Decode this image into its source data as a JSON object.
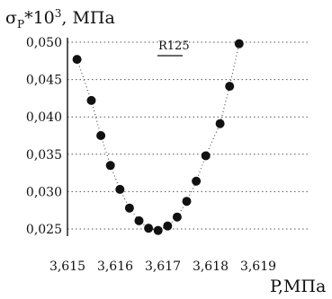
{
  "chart_data": {
    "type": "scatter",
    "ylabel_main": "σ",
    "ylabel_sub": "P",
    "ylabel_rest": "*10",
    "ylabel_sup": "3",
    "ylabel_unit": ", МПа",
    "xlabel": "P,МПа",
    "legend_label": "R125",
    "legend_position": "top-center",
    "xlim": [
      3.615,
      3.619
    ],
    "ylim": [
      0.025,
      0.05
    ],
    "x_ticks": [
      3.615,
      3.616,
      3.617,
      3.618,
      3.619
    ],
    "x_tick_labels": [
      "3,615",
      "3,616",
      "3,617",
      "3,618",
      "3,619"
    ],
    "y_ticks": [
      0.025,
      0.03,
      0.035,
      0.04,
      0.045,
      0.05
    ],
    "y_tick_labels": [
      "0,025",
      "0,030",
      "0,035",
      "0,040",
      "0,045",
      "0,050"
    ],
    "grid": "horizontal-dotted",
    "fit_curve": "dotted",
    "series": [
      {
        "x": [
          3.6152,
          3.6155,
          3.6157,
          3.6159,
          3.6161,
          3.6163,
          3.6165,
          3.6167,
          3.6169,
          3.6171,
          3.6173,
          3.6175,
          3.6177,
          3.6179,
          3.6182,
          3.6184,
          3.6186
        ],
        "y": [
          0.0477,
          0.0422,
          0.0375,
          0.0335,
          0.0303,
          0.0278,
          0.0261,
          0.0251,
          0.0248,
          0.0254,
          0.0266,
          0.0287,
          0.0314,
          0.0348,
          0.0391,
          0.0441,
          0.0498
        ]
      }
    ],
    "colors": {
      "marker": "#111111",
      "axis": "#111111",
      "grid": "#555555"
    }
  }
}
